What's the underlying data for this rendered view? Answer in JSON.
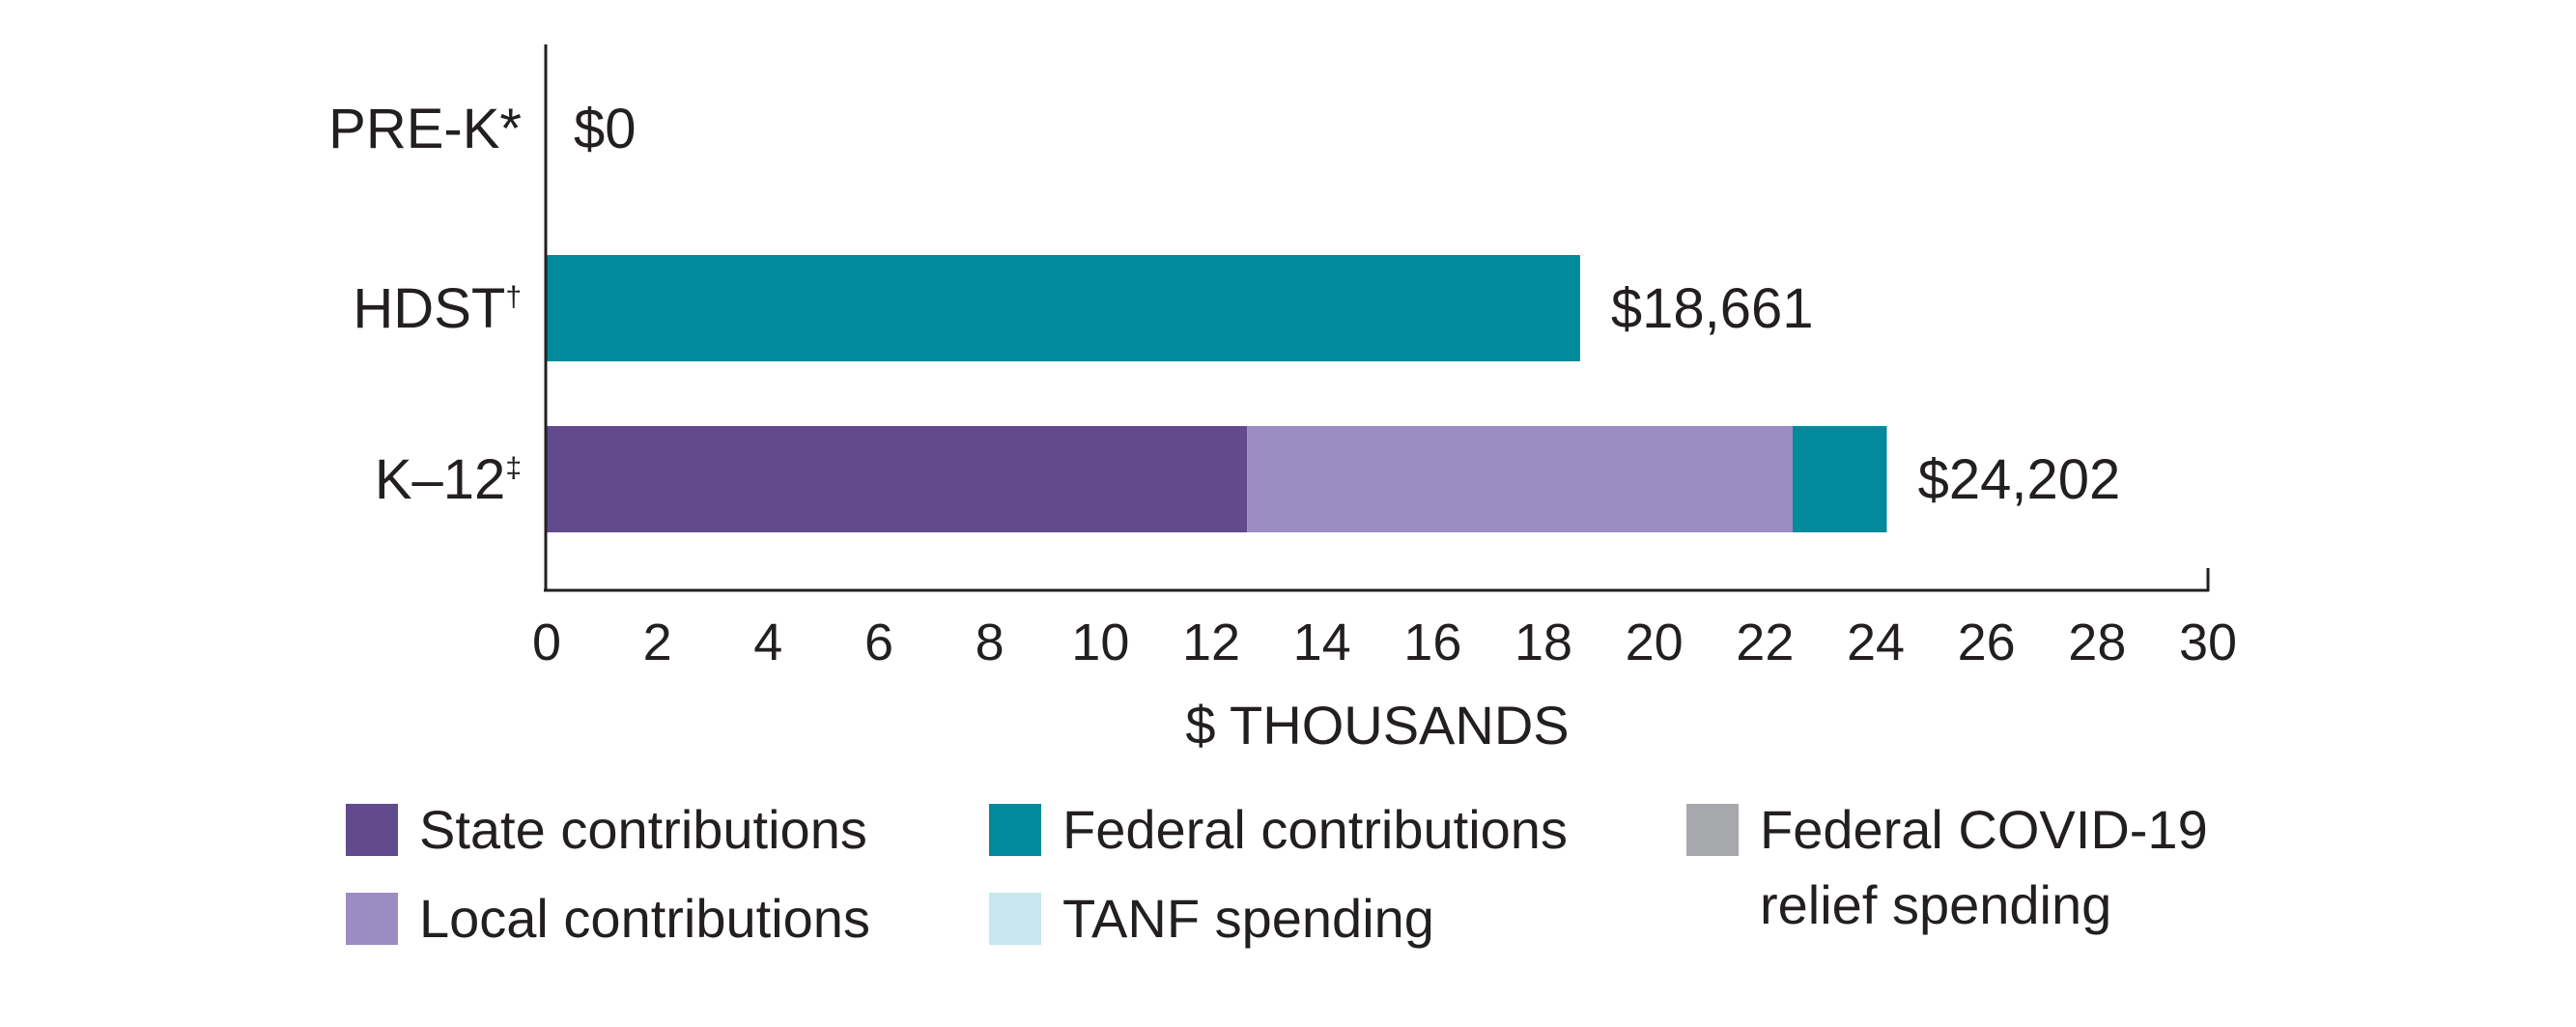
{
  "chart_data": {
    "type": "bar",
    "orientation": "horizontal",
    "stacked": true,
    "title": "",
    "xlabel": "$ THOUSANDS",
    "ylabel": "",
    "xlim": [
      0,
      30
    ],
    "xticks": [
      0,
      2,
      4,
      6,
      8,
      10,
      12,
      14,
      16,
      18,
      20,
      22,
      24,
      26,
      28,
      30
    ],
    "grid": false,
    "legend_position": "bottom",
    "categories": [
      {
        "name": "PRE-K",
        "mark": "*",
        "total_label": "$0"
      },
      {
        "name": "HDST",
        "mark": "†",
        "total_label": "$18,661"
      },
      {
        "name": "K–12",
        "mark": "‡",
        "total_label": "$24,202"
      }
    ],
    "series": [
      {
        "name": "State contributions",
        "color": "#624a8f",
        "values": [
          0,
          0,
          12.65
        ]
      },
      {
        "name": "Local contributions",
        "color": "#9b8dc3",
        "values": [
          0,
          0,
          9.85
        ]
      },
      {
        "name": "Federal contributions",
        "color": "#008a9b",
        "values": [
          0,
          18.661,
          1.7
        ]
      },
      {
        "name": "TANF spending",
        "color": "#c7e7ee",
        "values": [
          0,
          0,
          0
        ]
      },
      {
        "name": "Federal COVID-19 relief spending",
        "color": "#a7a8ab",
        "values": [
          0,
          0,
          0
        ]
      }
    ],
    "totals": [
      0,
      18.661,
      24.202
    ]
  },
  "legend": [
    {
      "label": "State contributions",
      "color": "#624a8f"
    },
    {
      "label": "Local contributions",
      "color": "#9b8dc3"
    },
    {
      "label": "Federal contributions",
      "color": "#008a9b"
    },
    {
      "label": "TANF spending",
      "color": "#c7e7ee"
    },
    {
      "label": "Federal COVID-19 relief spending",
      "label_line1": "Federal COVID-19",
      "label_line2": "relief spending",
      "color": "#a7a8ab"
    }
  ]
}
